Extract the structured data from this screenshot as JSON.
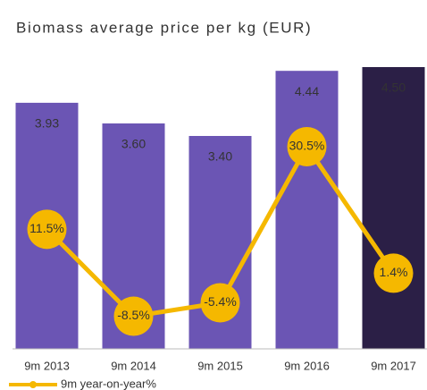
{
  "chart_data": {
    "type": "bar",
    "title": "Biomass average price per kg (EUR)",
    "categories": [
      "9m 2013",
      "9m 2014",
      "9m 2015",
      "9m 2016",
      "9m 2017"
    ],
    "ylim": [
      0,
      5
    ],
    "y2lim": [
      -16,
      56
    ],
    "series": [
      {
        "type": "bar",
        "colors": [
          "#6b55b4",
          "#6b55b4",
          "#6b55b4",
          "#6b55b4",
          "#2b1f46"
        ],
        "values": [
          3.93,
          3.6,
          3.4,
          4.44,
          4.5
        ],
        "value_labels": [
          "3.93",
          "3.60",
          "3.40",
          "4.44",
          "4.50"
        ]
      },
      {
        "type": "line",
        "name": "9m year-on-year%",
        "color": "#f5b800",
        "axis": "y2",
        "values": [
          11.5,
          -8.5,
          -5.4,
          30.5,
          1.4
        ],
        "value_labels": [
          "11.5%",
          "-8.5%",
          "-5.4%",
          "30.5%",
          "1.4%"
        ]
      }
    ]
  }
}
